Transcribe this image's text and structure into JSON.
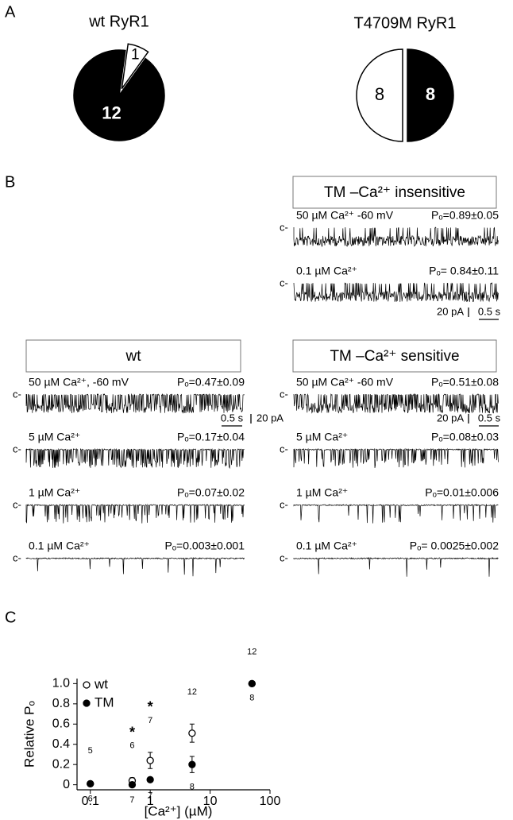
{
  "panel_labels": [
    "A",
    "B",
    "C"
  ],
  "chart_data": [
    {
      "type": "pie",
      "title": "wt RyR1",
      "values": [
        1,
        12
      ],
      "colors": [
        "#ffffff",
        "#000000"
      ]
    },
    {
      "type": "pie",
      "title": "T4709M RyR1",
      "values": [
        8,
        8
      ],
      "colors": [
        "#ffffff",
        "#000000"
      ]
    },
    {
      "type": "scatter",
      "x_label": "[Ca²⁺] (µM)",
      "y_label": "Relative Pₒ",
      "log_x": true,
      "xlim": [
        0.06,
        100
      ],
      "xticks": [
        0.1,
        1,
        10,
        100
      ],
      "ylim": [
        -0.05,
        1.05
      ],
      "yticks": [
        0,
        0.2,
        0.4,
        0.6,
        0.8,
        {
          "value": 1,
          "label": "1.0"
        }
      ],
      "series": [
        {
          "name": "wt",
          "marker": "open",
          "color": "#000000",
          "x": [
            0.1,
            0.5,
            1,
            5,
            50
          ],
          "values": [
            0.01,
            0.04,
            0.24,
            0.51,
            1
          ],
          "errors": [
            0.01,
            0.03,
            0.08,
            0.09,
            0
          ],
          "n": [
            5,
            6,
            7,
            12,
            12
          ]
        },
        {
          "name": "TM",
          "marker": "filled",
          "color": "#000000",
          "x": [
            0.1,
            0.5,
            1,
            5,
            50
          ],
          "values": [
            0.01,
            0,
            0.05,
            0.2,
            1
          ],
          "errors": [
            0.01,
            0.01,
            0.02,
            0.08,
            0
          ],
          "n": [
            6,
            7,
            7,
            8,
            8
          ]
        }
      ],
      "annotations": [
        {
          "text": "*",
          "x": 0.5
        },
        {
          "text": "*",
          "x": 1
        }
      ]
    }
  ],
  "panel_b": {
    "closed_label": "c-",
    "groups": [
      {
        "title": "TM –Ca²⁺ insensitive",
        "traces": [
          {
            "condition": "50 µM Ca²⁺ -60 mV",
            "po": "Pₒ=0.89±0.05"
          },
          {
            "condition": "0.1 µM Ca²⁺",
            "po": "Pₒ= 0.84±0.11"
          }
        ],
        "scale": {
          "current": "20 pA",
          "time": "0.5 s"
        }
      },
      {
        "title": "wt",
        "traces": [
          {
            "condition": "50 µM Ca²⁺, -60 mV",
            "po": "Pₒ=0.47±0.09"
          },
          {
            "condition": "5 µM Ca²⁺",
            "po": "Pₒ=0.17±0.04"
          },
          {
            "condition": "1 µM Ca²⁺",
            "po": "Pₒ=0.07±0.02"
          },
          {
            "condition": "0.1 µM Ca²⁺",
            "po": "Pₒ=0.003±0.001"
          }
        ],
        "scale": {
          "current": "20 pA",
          "time": "0.5 s"
        }
      },
      {
        "title": "TM –Ca²⁺ sensitive",
        "traces": [
          {
            "condition": "50 µM Ca²⁺ -60 mV",
            "po": "Pₒ=0.51±0.08"
          },
          {
            "condition": "5 µM Ca²⁺",
            "po": "Pₒ=0.08±0.03"
          },
          {
            "condition": "1 µM Ca²⁺",
            "po": "Pₒ=0.01±0.006"
          },
          {
            "condition": "0.1 µM Ca²⁺",
            "po": "Pₒ= 0.0025±0.002"
          }
        ],
        "scale": {
          "current": "20 pA",
          "time": "0.5 s"
        }
      }
    ]
  }
}
